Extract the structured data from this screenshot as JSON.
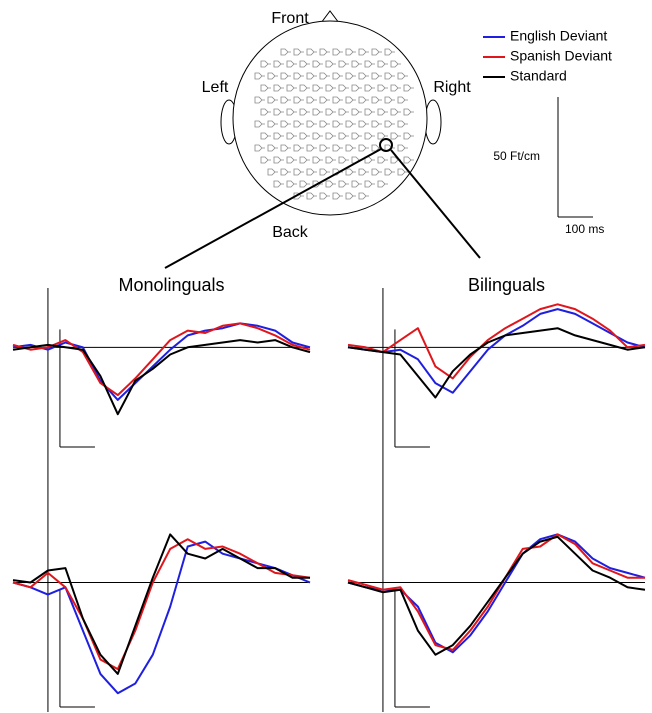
{
  "head_labels": {
    "front": "Front",
    "left": "Left",
    "right": "Right",
    "back": "Back"
  },
  "scale_bar": {
    "y": {
      "value": 50,
      "label": "50 Ft/cm"
    },
    "x": {
      "value": 100,
      "label": "100 ms"
    }
  },
  "chart_data": [
    {
      "type": "line",
      "title": "Monolinguals",
      "xlim": [
        -100,
        750
      ],
      "ylim": [
        -43,
        24
      ],
      "x": [
        -100,
        -50,
        0,
        50,
        100,
        150,
        200,
        250,
        300,
        350,
        400,
        450,
        500,
        550,
        600,
        650,
        700,
        750
      ],
      "series": [
        {
          "name": "English Deviant",
          "color": "#1f1fe0",
          "values": [
            0,
            1,
            -1,
            2,
            0,
            -14,
            -22,
            -15,
            -8,
            -1,
            5,
            7,
            8,
            10,
            9,
            7,
            2,
            0
          ]
        },
        {
          "name": "Spanish Deviant",
          "color": "#e0161c",
          "values": [
            1,
            -1,
            0,
            3,
            -2,
            -15,
            -20,
            -13,
            -5,
            3,
            7,
            6,
            9,
            10,
            8,
            5,
            1,
            -1
          ]
        },
        {
          "name": "Standard",
          "color": "#000000",
          "values": [
            -1,
            0,
            1,
            0,
            -1,
            -12,
            -28,
            -14,
            -9,
            -3,
            0,
            1,
            2,
            3,
            2,
            3,
            0,
            -2
          ]
        }
      ]
    },
    {
      "type": "line",
      "title": "Bilinguals",
      "xlim": [
        -100,
        750
      ],
      "ylim": [
        -43,
        24
      ],
      "x": [
        -100,
        -50,
        0,
        50,
        100,
        150,
        200,
        250,
        300,
        350,
        400,
        450,
        500,
        550,
        600,
        650,
        700,
        750
      ],
      "series": [
        {
          "color": "#1f1fe0",
          "values": [
            0,
            -1,
            -2,
            -1,
            -5,
            -15,
            -19,
            -10,
            -1,
            5,
            9,
            14,
            16,
            14,
            10,
            6,
            2,
            0
          ]
        },
        {
          "color": "#e0161c",
          "values": [
            1,
            0,
            -2,
            3,
            8,
            -8,
            -13,
            -4,
            3,
            8,
            12,
            16,
            18,
            16,
            12,
            7,
            0,
            1
          ]
        },
        {
          "color": "#000000",
          "values": [
            0,
            -1,
            -2,
            -3,
            -12,
            -21,
            -10,
            -3,
            2,
            5,
            6,
            7,
            8,
            5,
            3,
            1,
            -1,
            0
          ]
        }
      ]
    },
    {
      "type": "line",
      "xlim": [
        -100,
        750
      ],
      "ylim": [
        -53,
        26
      ],
      "x": [
        -100,
        -50,
        0,
        50,
        100,
        150,
        200,
        250,
        300,
        350,
        400,
        450,
        500,
        550,
        600,
        650,
        700,
        750
      ],
      "series": [
        {
          "color": "#1f1fe0",
          "values": [
            0,
            -2,
            -5,
            -2,
            -20,
            -38,
            -46,
            -42,
            -30,
            -10,
            15,
            17,
            12,
            10,
            8,
            6,
            3,
            0
          ]
        },
        {
          "color": "#e0161c",
          "values": [
            0,
            -2,
            4,
            -2,
            -15,
            -32,
            -36,
            -20,
            0,
            14,
            18,
            14,
            15,
            12,
            8,
            4,
            3,
            2
          ]
        },
        {
          "color": "#000000",
          "values": [
            1,
            0,
            5,
            6,
            -15,
            -30,
            -38,
            -18,
            2,
            20,
            12,
            10,
            14,
            10,
            6,
            6,
            2,
            2
          ]
        }
      ]
    },
    {
      "type": "line",
      "xlim": [
        -100,
        750
      ],
      "ylim": [
        -53,
        26
      ],
      "x": [
        -100,
        -50,
        0,
        50,
        100,
        150,
        200,
        250,
        300,
        350,
        400,
        450,
        500,
        550,
        600,
        650,
        700,
        750
      ],
      "series": [
        {
          "color": "#1f1fe0",
          "values": [
            0,
            -2,
            -3,
            -3,
            -10,
            -25,
            -29,
            -22,
            -12,
            0,
            12,
            18,
            20,
            17,
            10,
            6,
            4,
            2
          ]
        },
        {
          "color": "#e0161c",
          "values": [
            1,
            -1,
            -3,
            -2,
            -12,
            -26,
            -28,
            -20,
            -10,
            2,
            14,
            15,
            20,
            16,
            8,
            5,
            2,
            2
          ]
        },
        {
          "color": "#000000",
          "values": [
            0,
            -2,
            -4,
            -3,
            -20,
            -30,
            -26,
            -18,
            -8,
            2,
            12,
            17,
            19,
            12,
            5,
            2,
            -2,
            -3
          ]
        }
      ]
    }
  ]
}
